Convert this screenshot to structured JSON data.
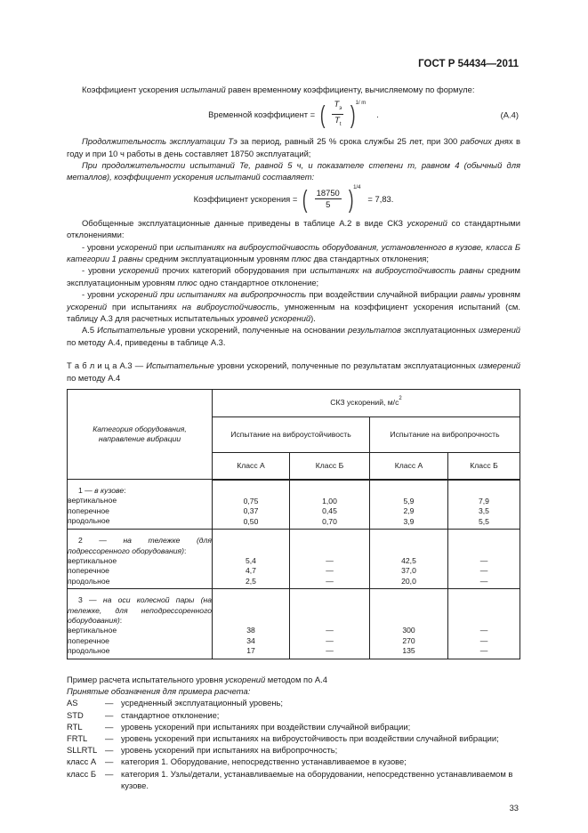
{
  "header": {
    "standard": "ГОСТ Р 54434—2011"
  },
  "paragraphs": {
    "p1": [
      [
        "Коэффициент ускорения ",
        0
      ],
      [
        "испытаний",
        1
      ],
      [
        " равен временному коэффициенту, вычисляемому по формуле:",
        0
      ]
    ],
    "p2": [
      [
        "Продолжительность эксплуатации T",
        1
      ],
      [
        "э",
        1
      ],
      [
        " за период, равный 25 % срока службы 25 лет, при 300 ",
        0
      ],
      [
        "рабочих",
        1
      ],
      [
        " днях в году и при 10 ч работы в день составляет 18750 эксплуатаций;",
        0
      ]
    ],
    "p3": [
      [
        "При продолжительности испытаний T",
        1
      ],
      [
        "e",
        1
      ],
      [
        ", равной 5 ч, и показателе степени m, равном 4 (обычный для металлов), коэффициент ускорения испытаний составляет:",
        1
      ]
    ],
    "p4": [
      [
        "Обобщенные эксплуатационные данные приведены в таблице А.2 в виде СКЗ ",
        0
      ],
      [
        "ускорений",
        1
      ],
      [
        " со стандартными отклонениями:",
        0
      ]
    ],
    "p5": [
      [
        "- уровни ",
        0
      ],
      [
        "ускорений",
        1
      ],
      [
        " при ",
        0
      ],
      [
        "испытаниях на виброустойчивость оборудования, установленного в кузове, класса Б категории 1 равны",
        1
      ],
      [
        " средним эксплуатационным уровням ",
        0
      ],
      [
        "плюс",
        1
      ],
      [
        " два стандартных отклонения;",
        0
      ]
    ],
    "p6": [
      [
        "- уровни ",
        0
      ],
      [
        "ускорений",
        1
      ],
      [
        " прочих категорий оборудования при ",
        0
      ],
      [
        "испытаниях на виброустойчивость равны",
        1
      ],
      [
        " средним эксплуатационным уровням ",
        0
      ],
      [
        "плюс",
        1
      ],
      [
        " одно стандартное отклонение;",
        0
      ]
    ],
    "p7": [
      [
        "- уровни ",
        0
      ],
      [
        "ускорений при испытаниях на вибропрочность",
        1
      ],
      [
        " при воздействии случайной вибрации ",
        0
      ],
      [
        "равны",
        1
      ],
      [
        " уровням ",
        0
      ],
      [
        "ускорений",
        1
      ],
      [
        " при испытаниях ",
        0
      ],
      [
        "на виброустойчивость",
        1
      ],
      [
        ", умноженным на коэффициент ускорения испытаний (см. таблицу А.3 для расчетных испытательных ",
        0
      ],
      [
        "уровней ускорений",
        1
      ],
      [
        ").",
        0
      ]
    ],
    "p8": [
      [
        "А.5  ",
        0
      ],
      [
        "Испытательные",
        1
      ],
      [
        " уровни ускорений, полученные на основании ",
        0
      ],
      [
        "результатов",
        1
      ],
      [
        " эксплуатационных ",
        0
      ],
      [
        "измерений",
        1
      ],
      [
        " по методу А.4, приведены в таблице А.3.",
        0
      ]
    ],
    "caption": [
      [
        "Т а б л и ц а   А.3 — ",
        0
      ],
      [
        "Испытательные",
        1
      ],
      [
        " уровни ускорений, полученные по результатам эксплуатационных ",
        0
      ],
      [
        "измерений",
        1
      ],
      [
        " по методу А.4",
        0
      ]
    ]
  },
  "formula1": {
    "label": "Временной коэффициент =",
    "numerator": "T",
    "numerator_sub": "э",
    "denominator": "T",
    "denominator_sub": "t",
    "exponent": "1/ m",
    "tail": ".",
    "number": "(А.4)"
  },
  "formula2": {
    "label": "Коэффициент ускорения =",
    "numerator": "18750",
    "denominator": "5",
    "exponent": "1/4",
    "result": "= 7,83."
  },
  "table": {
    "col_category": "Категория оборудования, направление вибрации",
    "col_group": "СКЗ ускорений, м/с",
    "col_group_sup": "2",
    "test_stability": "Испытание на виброустойчивость",
    "test_strength": "Испытание на вибропрочность",
    "class_a": "Класс А",
    "class_b": "Класс Б",
    "groups": [
      {
        "title_num": "1 — ",
        "title": "в кузове",
        "title_tail": ":",
        "rows": [
          [
            "вертикальное",
            "0,75",
            "1,00",
            "5,9",
            "7,9"
          ],
          [
            "поперечное",
            "0,37",
            "0,45",
            "2,9",
            "3,5"
          ],
          [
            "продольное",
            "0,50",
            "0,70",
            "3,9",
            "5,5"
          ]
        ]
      },
      {
        "title_num": "2 — ",
        "title": "на тележке (для подрессоренного оборудования)",
        "title_tail": ":",
        "rows": [
          [
            "вертикальное",
            "5,4",
            "—",
            "42,5",
            "—"
          ],
          [
            "поперечное",
            "4,7",
            "—",
            "37,0",
            "—"
          ],
          [
            "продольное",
            "2,5",
            "—",
            "20,0",
            "—"
          ]
        ]
      },
      {
        "title_num": "3 — ",
        "title": "на оси колесной пары (на тележке, для неподрессоренного оборудования)",
        "title_tail": ":",
        "rows": [
          [
            "вертикальное",
            "38",
            "—",
            "300",
            "—"
          ],
          [
            "поперечное",
            "34",
            "—",
            "270",
            "—"
          ],
          [
            "продольное",
            "17",
            "—",
            "135",
            "—"
          ]
        ]
      }
    ]
  },
  "example": {
    "title": [
      [
        "Пример расчета испытательного уровня ",
        0
      ],
      [
        "ускорений",
        1
      ],
      [
        " методом по А.4",
        0
      ]
    ],
    "subtitle": "Принятые обозначения для примера расчета:",
    "items": [
      {
        "abbr": "AS",
        "dash": "—",
        "desc": "усредненный эксплуатационный уровень;"
      },
      {
        "abbr": "STD",
        "dash": "—",
        "desc": "стандартное отклонение;"
      },
      {
        "abbr": "RTL",
        "dash": "—",
        "desc": "уровень ускорений при испытаниях при воздействии случайной вибрации;"
      },
      {
        "abbr": "FRTL",
        "dash": "—",
        "desc": "уровень ускорений при испытаниях на виброустойчивость при воздействии случайной вибрации;"
      },
      {
        "abbr": "SLLRTL",
        "dash": "—",
        "desc": "уровень ускорений при испытаниях на вибропрочность;"
      },
      {
        "abbr": "класс А",
        "dash": "—",
        "desc": "категория 1. Оборудование, непосредственно устанавливаемое в кузове;"
      },
      {
        "abbr": "класс Б",
        "dash": "—",
        "desc": "категория 1. Узлы/детали, устанавливаемые на оборудовании, непосредственно устанавливаемом в кузове."
      }
    ]
  },
  "footer": {
    "page_number": "33"
  }
}
